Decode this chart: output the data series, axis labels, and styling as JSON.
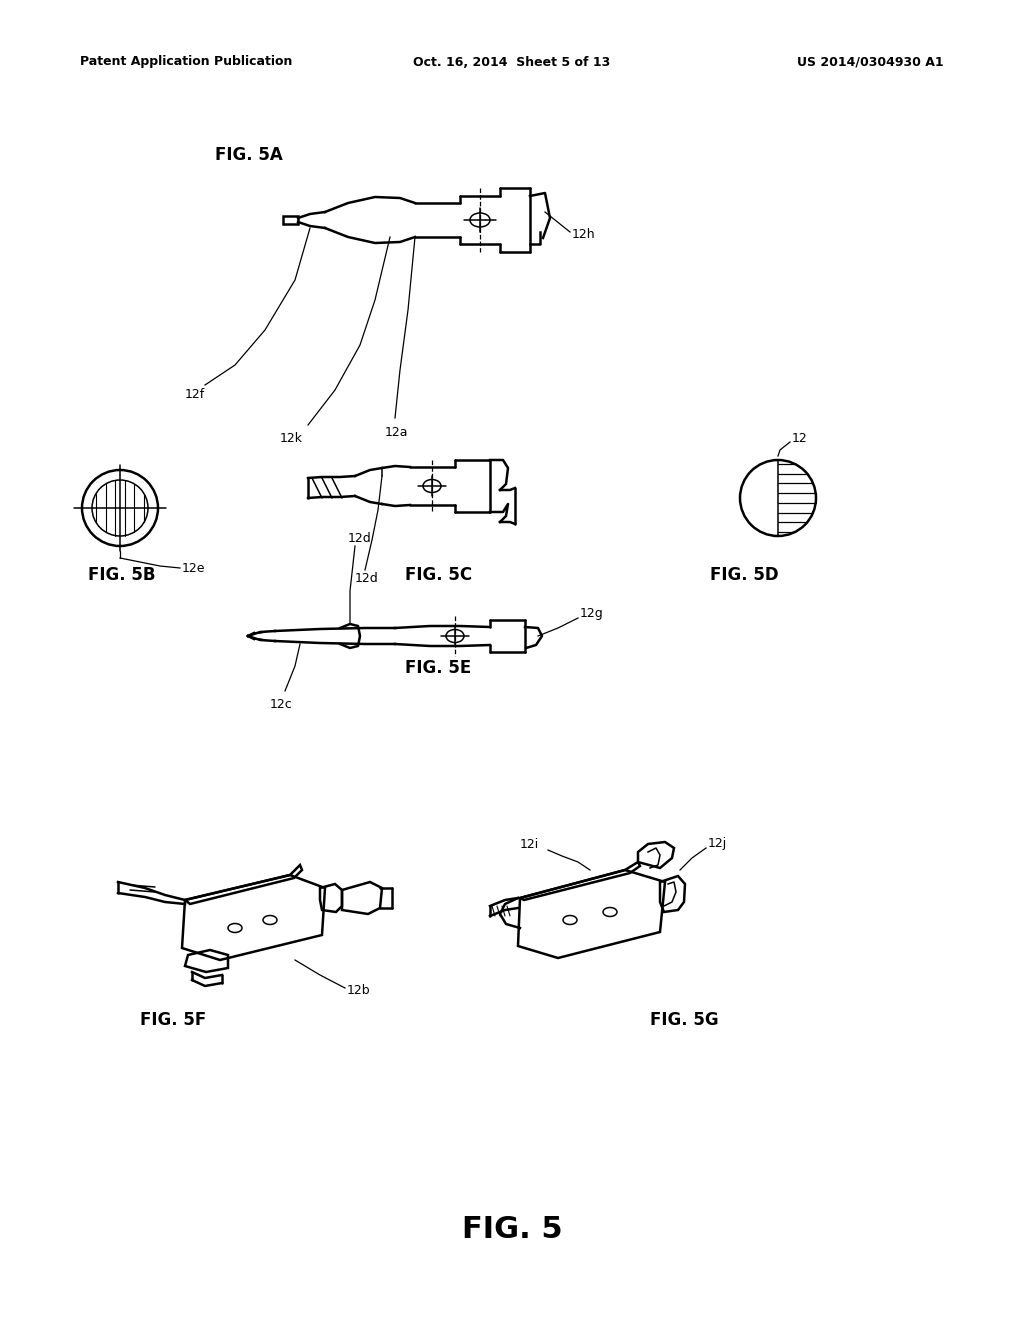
{
  "background_color": "#ffffff",
  "header_left": "Patent Application Publication",
  "header_mid": "Oct. 16, 2014  Sheet 5 of 13",
  "header_right": "US 2014/0304930 A1",
  "footer_label": "FIG. 5"
}
